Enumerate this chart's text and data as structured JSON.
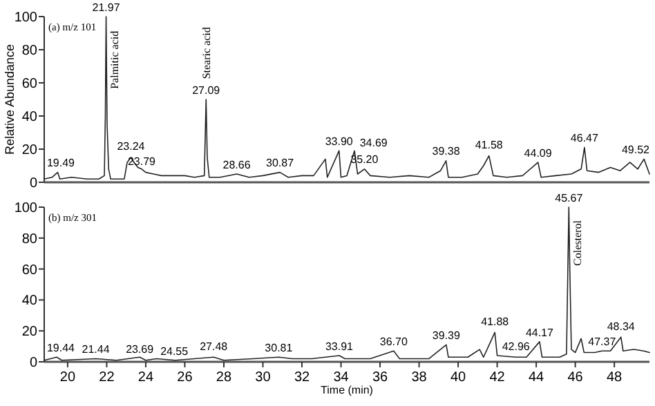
{
  "chart_data": [
    {
      "type": "line",
      "title": "(a) m/z 101",
      "ylabel": "Relative Abundance",
      "xlim": [
        18.8,
        49.8
      ],
      "ylim": [
        0,
        100
      ],
      "yticks": [
        0,
        20,
        40,
        60,
        80,
        100
      ],
      "tick_labels": "y",
      "series": [
        {
          "color": "#222222",
          "x": [
            18.8,
            19.2,
            19.49,
            19.6,
            20.2,
            21,
            21.6,
            21.88,
            21.93,
            21.97,
            22.02,
            22.1,
            22.2,
            22.9,
            23.05,
            23.24,
            23.4,
            23.6,
            23.79,
            24.0,
            24.4,
            24.8,
            25.4,
            26,
            26.5,
            27.0,
            27.09,
            27.15,
            27.25,
            27.8,
            28.66,
            29.3,
            30,
            30.87,
            31.3,
            32,
            32.6,
            33.2,
            33.3,
            33.9,
            34.0,
            34.3,
            34.69,
            34.85,
            35.2,
            35.5,
            36.5,
            37.5,
            38.5,
            39.1,
            39.38,
            39.5,
            40.2,
            41.0,
            41.3,
            41.58,
            41.8,
            42.5,
            43.3,
            44.09,
            44.25,
            45,
            45.8,
            46.3,
            46.47,
            46.6,
            47.2,
            47.8,
            48.3,
            48.8,
            49.2,
            49.52,
            49.8
          ],
          "values": [
            2,
            3,
            6,
            2,
            3,
            2,
            2,
            4,
            40,
            100,
            35,
            8,
            2,
            2,
            12,
            15,
            12,
            9,
            8,
            6,
            5,
            4,
            4,
            4,
            3,
            4,
            50,
            15,
            3,
            3,
            5,
            3,
            4,
            6,
            3,
            4,
            4,
            14,
            3,
            19,
            3,
            4,
            19,
            5,
            8,
            4,
            3,
            4,
            3,
            7,
            13,
            3,
            3,
            5,
            10,
            16,
            4,
            3,
            4,
            12,
            3,
            4,
            5,
            8,
            21,
            7,
            6,
            9,
            7,
            12,
            8,
            14,
            5
          ]
        }
      ],
      "annotations": [
        {
          "text": "19.49",
          "x": 19.49,
          "y": 7
        },
        {
          "text": "21.97",
          "x": 21.97,
          "y": 101
        },
        {
          "text": "23.24",
          "x": 23.24,
          "y": 17
        },
        {
          "text": "23.79",
          "x": 23.79,
          "y": 8
        },
        {
          "text": "27.09",
          "x": 27.09,
          "y": 51
        },
        {
          "text": "28.66",
          "x": 28.66,
          "y": 6
        },
        {
          "text": "30.87",
          "x": 30.87,
          "y": 7
        },
        {
          "text": "33.90",
          "x": 33.9,
          "y": 20
        },
        {
          "text": "34.69",
          "x": 34.69,
          "y": 19
        },
        {
          "text": "35.20",
          "x": 35.2,
          "y": 9
        },
        {
          "text": "39.38",
          "x": 39.38,
          "y": 14
        },
        {
          "text": "41.58",
          "x": 41.58,
          "y": 18
        },
        {
          "text": "44.09",
          "x": 44.09,
          "y": 13
        },
        {
          "text": "46.47",
          "x": 46.47,
          "y": 22
        },
        {
          "text": "49.52",
          "x": 49.52,
          "y": 15
        },
        {
          "text": "Palmitic acid",
          "x": 21.97,
          "y": 100
        },
        {
          "text": "Stearic acid",
          "x": 27.09,
          "y": 50
        }
      ]
    },
    {
      "type": "line",
      "title": "(b) m/z 301",
      "xlabel": "Time (min)",
      "xlim": [
        18.8,
        49.8
      ],
      "xticks": [
        20,
        22,
        24,
        26,
        28,
        30,
        32,
        34,
        36,
        38,
        40,
        42,
        44,
        46,
        48
      ],
      "ylim": [
        0,
        100
      ],
      "yticks": [
        0,
        20,
        40,
        60,
        80,
        100
      ],
      "series": [
        {
          "color": "#222222",
          "x": [
            18.8,
            19.44,
            19.7,
            21.44,
            22.5,
            23.69,
            24,
            24.55,
            25.5,
            27.48,
            28,
            29.5,
            30.81,
            31.5,
            32.5,
            33.91,
            34.2,
            35.5,
            36.7,
            37,
            38.5,
            39.39,
            39.5,
            40.5,
            41.1,
            41.3,
            41.88,
            42,
            42.96,
            43.5,
            44.17,
            44.3,
            45.2,
            45.55,
            45.62,
            45.67,
            45.72,
            45.8,
            46.0,
            46.3,
            46.45,
            47,
            47.37,
            47.8,
            48.34,
            48.45,
            49,
            49.5,
            49.8
          ],
          "values": [
            1,
            3,
            1,
            2,
            1,
            3,
            1,
            2,
            1,
            3,
            1,
            2,
            3,
            2,
            2,
            4,
            2,
            2,
            7,
            2,
            2,
            11,
            3,
            3,
            8,
            3,
            19,
            4,
            3,
            3,
            13,
            3,
            3,
            5,
            60,
            100,
            60,
            8,
            6,
            15,
            6,
            6,
            7,
            7,
            16,
            7,
            8,
            7,
            6
          ]
        }
      ],
      "annotations": [
        {
          "text": "19.44",
          "x": 19.44,
          "y": 4
        },
        {
          "text": "21.44",
          "x": 21.44,
          "y": 3
        },
        {
          "text": "23.69",
          "x": 23.69,
          "y": 3
        },
        {
          "text": "24.55",
          "x": 24.55,
          "y": 2
        },
        {
          "text": "27.48",
          "x": 27.48,
          "y": 5
        },
        {
          "text": "30.81",
          "x": 30.81,
          "y": 4
        },
        {
          "text": "33.91",
          "x": 33.91,
          "y": 5
        },
        {
          "text": "36.70",
          "x": 36.7,
          "y": 8
        },
        {
          "text": "39.39",
          "x": 39.39,
          "y": 12
        },
        {
          "text": "41.88",
          "x": 41.88,
          "y": 21
        },
        {
          "text": "42.96",
          "x": 42.96,
          "y": 5
        },
        {
          "text": "44.17",
          "x": 44.17,
          "y": 14
        },
        {
          "text": "45.67",
          "x": 45.67,
          "y": 101
        },
        {
          "text": "47.37",
          "x": 47.37,
          "y": 8
        },
        {
          "text": "48.34",
          "x": 48.34,
          "y": 18
        },
        {
          "text": "Colesterol",
          "x": 45.67,
          "y": 100
        }
      ]
    }
  ]
}
